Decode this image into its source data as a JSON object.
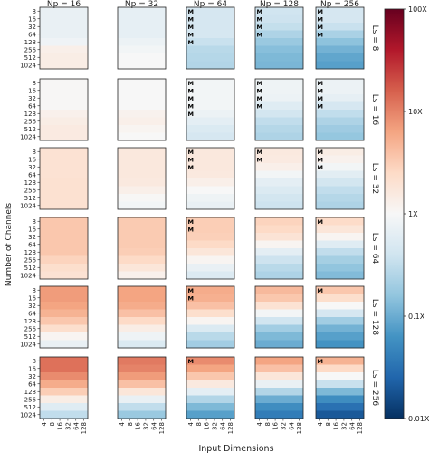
{
  "chart_data": {
    "type": "heatmap",
    "xlabel": "Input Dimensions",
    "ylabel": "Number of Channels",
    "column_headers": [
      "Np = 16",
      "Np = 32",
      "Np = 64",
      "Np = 128",
      "Np = 256"
    ],
    "row_headers": [
      "Ls = 8",
      "Ls = 16",
      "Ls = 32",
      "Ls = 64",
      "Ls = 128",
      "Ls = 256"
    ],
    "x_ticks": [
      "4",
      "8",
      "16",
      "32",
      "64",
      "128"
    ],
    "y_ticks": [
      "8",
      "16",
      "32",
      "64",
      "128",
      "256",
      "512",
      "1024"
    ],
    "colorbar": {
      "ticks": [
        "100X",
        "10X",
        "1X",
        "0.1X",
        "0.01X"
      ],
      "log_range": [
        -2,
        2
      ],
      "colormap": "RdBu_r"
    },
    "marker_text": "M",
    "panels": [
      [
        {
          "rows": [
            -0.15,
            -0.15,
            -0.15,
            -0.15,
            -0.08,
            0.12,
            0.15,
            0.15
          ],
          "m": 0
        },
        {
          "rows": [
            -0.18,
            -0.18,
            -0.18,
            -0.18,
            -0.12,
            -0.05,
            0.0,
            0.0
          ],
          "m": 0
        },
        {
          "rows": [
            -0.35,
            -0.35,
            -0.35,
            -0.35,
            -0.45,
            -0.55,
            -0.58,
            -0.6
          ],
          "m": 5
        },
        {
          "rows": [
            -0.4,
            -0.42,
            -0.48,
            -0.62,
            -0.75,
            -0.85,
            -0.9,
            -0.92
          ],
          "m": 4
        },
        {
          "rows": [
            -0.35,
            -0.35,
            -0.45,
            -0.65,
            -0.82,
            -0.95,
            -1.05,
            -1.1
          ],
          "m": 4
        }
      ],
      [
        {
          "rows": [
            0.02,
            0.02,
            0.02,
            0.02,
            0.1,
            0.15,
            0.18,
            0.18
          ],
          "m": 0
        },
        {
          "rows": [
            0.0,
            0.0,
            0.0,
            0.0,
            0.08,
            0.12,
            0.05,
            0.0
          ],
          "m": 0
        },
        {
          "rows": [
            -0.05,
            -0.05,
            -0.05,
            -0.05,
            -0.12,
            -0.2,
            -0.3,
            -0.35
          ],
          "m": 5
        },
        {
          "rows": [
            -0.1,
            -0.1,
            -0.12,
            -0.25,
            -0.38,
            -0.5,
            -0.58,
            -0.62
          ],
          "m": 4
        },
        {
          "rows": [
            -0.12,
            -0.12,
            -0.18,
            -0.35,
            -0.5,
            -0.62,
            -0.72,
            -0.78
          ],
          "m": 4
        }
      ],
      [
        {
          "rows": [
            0.3,
            0.3,
            0.3,
            0.3,
            0.32,
            0.32,
            0.32,
            0.32
          ],
          "m": 0
        },
        {
          "rows": [
            0.22,
            0.22,
            0.22,
            0.22,
            0.2,
            0.12,
            0.02,
            -0.05
          ],
          "m": 0
        },
        {
          "rows": [
            0.22,
            0.22,
            0.22,
            0.2,
            0.12,
            0.0,
            -0.1,
            -0.15
          ],
          "m": 3
        },
        {
          "rows": [
            0.2,
            0.18,
            0.12,
            -0.05,
            -0.2,
            -0.3,
            -0.38,
            -0.42
          ],
          "m": 2
        },
        {
          "rows": [
            0.15,
            0.08,
            -0.05,
            -0.22,
            -0.38,
            -0.5,
            -0.58,
            -0.62
          ],
          "m": 3
        }
      ],
      [
        {
          "rows": [
            0.55,
            0.55,
            0.55,
            0.55,
            0.55,
            0.45,
            0.35,
            0.3
          ],
          "m": 0
        },
        {
          "rows": [
            0.52,
            0.52,
            0.52,
            0.52,
            0.5,
            0.4,
            0.25,
            0.1
          ],
          "m": 0
        },
        {
          "rows": [
            0.5,
            0.5,
            0.48,
            0.4,
            0.25,
            0.05,
            -0.15,
            -0.28
          ],
          "m": 2
        },
        {
          "rows": [
            0.45,
            0.4,
            0.28,
            0.05,
            -0.2,
            -0.42,
            -0.55,
            -0.62
          ],
          "m": 0
        },
        {
          "rows": [
            0.38,
            0.25,
            0.05,
            -0.25,
            -0.5,
            -0.68,
            -0.8,
            -0.88
          ],
          "m": 1
        }
      ],
      [
        {
          "rows": [
            0.85,
            0.85,
            0.8,
            0.7,
            0.55,
            0.35,
            0.05,
            -0.15
          ],
          "m": 0
        },
        {
          "rows": [
            0.8,
            0.8,
            0.75,
            0.6,
            0.4,
            0.15,
            -0.1,
            -0.3
          ],
          "m": 0
        },
        {
          "rows": [
            0.75,
            0.72,
            0.6,
            0.35,
            0.05,
            -0.3,
            -0.55,
            -0.7
          ],
          "m": 2
        },
        {
          "rows": [
            0.65,
            0.55,
            0.3,
            -0.05,
            -0.4,
            -0.7,
            -0.9,
            -1.0
          ],
          "m": 0
        },
        {
          "rows": [
            0.55,
            0.35,
            0.0,
            -0.35,
            -0.7,
            -0.95,
            -1.1,
            -1.2
          ],
          "m": 1
        }
      ],
      [
        {
          "rows": [
            1.1,
            1.1,
            0.95,
            0.75,
            0.5,
            0.15,
            -0.25,
            -0.5
          ],
          "m": 0
        },
        {
          "rows": [
            1.05,
            1.0,
            0.85,
            0.6,
            0.25,
            -0.15,
            -0.5,
            -0.75
          ],
          "m": 0
        },
        {
          "rows": [
            0.95,
            0.8,
            0.55,
            0.2,
            -0.2,
            -0.6,
            -0.9,
            -1.1
          ],
          "m": 1
        },
        {
          "rows": [
            0.8,
            0.6,
            0.25,
            -0.15,
            -0.6,
            -1.0,
            -1.25,
            -1.4
          ],
          "m": 0
        },
        {
          "rows": [
            0.7,
            0.4,
            0.0,
            -0.45,
            -0.9,
            -1.25,
            -1.5,
            -1.7
          ],
          "m": 1
        }
      ]
    ]
  }
}
